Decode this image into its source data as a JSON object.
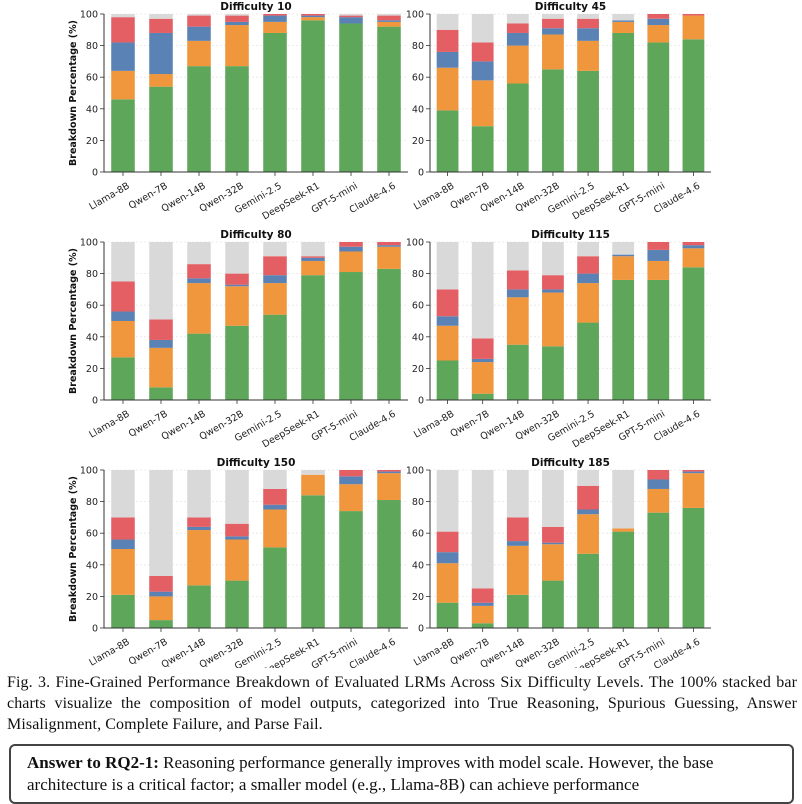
{
  "chart_data": [
    {
      "type": "bar",
      "stacked": true,
      "title": "Difficulty 10",
      "ylabel": "Breakdown Percentage (%)",
      "ylim": [
        0,
        100
      ],
      "yticks": [
        0,
        20,
        40,
        60,
        80,
        100
      ],
      "categories": [
        "Llama-8B",
        "Qwen-7B",
        "Qwen-14B",
        "Qwen-32B",
        "Gemini-2.5",
        "DeepSeek-R1",
        "GPT-5-mini",
        "Claude-4.6"
      ],
      "series": [
        {
          "values": [
            46,
            54,
            67,
            67,
            88,
            96,
            94,
            92
          ]
        },
        {
          "values": [
            18,
            8,
            16,
            26,
            7,
            2,
            0,
            3
          ]
        },
        {
          "values": [
            18,
            26,
            9,
            2,
            4,
            1,
            4,
            1
          ]
        },
        {
          "values": [
            16,
            9,
            7,
            4,
            1,
            1,
            1,
            3
          ]
        },
        {
          "values": [
            2,
            3,
            1,
            1,
            0,
            0,
            1,
            1
          ]
        }
      ]
    },
    {
      "type": "bar",
      "stacked": true,
      "title": "Difficulty 45",
      "ylabel": "",
      "ylim": [
        0,
        100
      ],
      "yticks": [
        0,
        20,
        40,
        60,
        80,
        100
      ],
      "categories": [
        "Llama-8B",
        "Qwen-7B",
        "Qwen-14B",
        "Qwen-32B",
        "Gemini-2.5",
        "DeepSeek-R1",
        "GPT-5-mini",
        "Claude-4.6"
      ],
      "series": [
        {
          "values": [
            39,
            29,
            56,
            65,
            64,
            88,
            82,
            84
          ]
        },
        {
          "values": [
            27,
            29,
            24,
            22,
            19,
            7,
            11,
            15
          ]
        },
        {
          "values": [
            10,
            12,
            8,
            4,
            8,
            1,
            4,
            0
          ]
        },
        {
          "values": [
            14,
            12,
            6,
            6,
            6,
            0,
            3,
            1
          ]
        },
        {
          "values": [
            10,
            18,
            6,
            3,
            3,
            4,
            0,
            0
          ]
        }
      ]
    },
    {
      "type": "bar",
      "stacked": true,
      "title": "Difficulty 80",
      "ylabel": "Breakdown Percentage (%)",
      "ylim": [
        0,
        100
      ],
      "yticks": [
        0,
        20,
        40,
        60,
        80,
        100
      ],
      "categories": [
        "Llama-8B",
        "Qwen-7B",
        "Qwen-14B",
        "Qwen-32B",
        "Gemini-2.5",
        "DeepSeek-R1",
        "GPT-5-mini",
        "Claude-4.6"
      ],
      "series": [
        {
          "values": [
            27,
            8,
            42,
            47,
            54,
            79,
            81,
            83
          ]
        },
        {
          "values": [
            23,
            25,
            32,
            25,
            20,
            9,
            13,
            14
          ]
        },
        {
          "values": [
            6,
            5,
            3,
            1,
            5,
            2,
            3,
            1
          ]
        },
        {
          "values": [
            19,
            13,
            9,
            7,
            12,
            1,
            3,
            2
          ]
        },
        {
          "values": [
            25,
            49,
            14,
            20,
            9,
            9,
            0,
            0
          ]
        }
      ]
    },
    {
      "type": "bar",
      "stacked": true,
      "title": "Difficulty 115",
      "ylabel": "",
      "ylim": [
        0,
        100
      ],
      "yticks": [
        0,
        20,
        40,
        60,
        80,
        100
      ],
      "categories": [
        "Llama-8B",
        "Qwen-7B",
        "Qwen-14B",
        "Qwen-32B",
        "Gemini-2.5",
        "DeepSeek-R1",
        "GPT-5-mini",
        "Claude-4.6"
      ],
      "series": [
        {
          "values": [
            25,
            4,
            35,
            34,
            49,
            76,
            76,
            84
          ]
        },
        {
          "values": [
            22,
            20,
            30,
            34,
            25,
            15,
            12,
            12
          ]
        },
        {
          "values": [
            6,
            2,
            5,
            2,
            6,
            1,
            7,
            2
          ]
        },
        {
          "values": [
            17,
            13,
            12,
            9,
            11,
            0,
            5,
            2
          ]
        },
        {
          "values": [
            30,
            61,
            18,
            21,
            9,
            8,
            0,
            0
          ]
        }
      ]
    },
    {
      "type": "bar",
      "stacked": true,
      "title": "Difficulty 150",
      "ylabel": "Breakdown Percentage (%)",
      "ylim": [
        0,
        100
      ],
      "yticks": [
        0,
        20,
        40,
        60,
        80,
        100
      ],
      "categories": [
        "Llama-8B",
        "Qwen-7B",
        "Qwen-14B",
        "Qwen-32B",
        "Gemini-2.5",
        "DeepSeek-R1",
        "GPT-5-mini",
        "Claude-4.6"
      ],
      "series": [
        {
          "values": [
            21,
            5,
            27,
            30,
            51,
            84,
            74,
            81
          ]
        },
        {
          "values": [
            29,
            15,
            35,
            26,
            24,
            13,
            17,
            17
          ]
        },
        {
          "values": [
            6,
            3,
            2,
            2,
            3,
            0,
            5,
            1
          ]
        },
        {
          "values": [
            14,
            10,
            6,
            8,
            10,
            0,
            4,
            1
          ]
        },
        {
          "values": [
            30,
            67,
            30,
            34,
            12,
            3,
            0,
            0
          ]
        }
      ]
    },
    {
      "type": "bar",
      "stacked": true,
      "title": "Difficulty 185",
      "ylabel": "",
      "ylim": [
        0,
        100
      ],
      "yticks": [
        0,
        20,
        40,
        60,
        80,
        100
      ],
      "categories": [
        "Llama-8B",
        "Qwen-7B",
        "Qwen-14B",
        "Qwen-32B",
        "Gemini-2.5",
        "DeepSeek-R1",
        "GPT-5-mini",
        "Claude-4.6"
      ],
      "series": [
        {
          "values": [
            16,
            3,
            21,
            30,
            47,
            61,
            73,
            76
          ]
        },
        {
          "values": [
            25,
            11,
            31,
            23,
            25,
            2,
            15,
            22
          ]
        },
        {
          "values": [
            7,
            2,
            3,
            1,
            3,
            0,
            6,
            1
          ]
        },
        {
          "values": [
            13,
            9,
            15,
            10,
            15,
            0,
            6,
            1
          ]
        },
        {
          "values": [
            39,
            75,
            30,
            36,
            10,
            37,
            0,
            0
          ]
        }
      ]
    }
  ],
  "series_colors": [
    "#5ea65a",
    "#f0963c",
    "#5a82b4",
    "#e35f64",
    "#d9d9d9"
  ],
  "caption": "Fig. 3.  Fine-Grained Performance Breakdown of Evaluated LRMs Across Six Difficulty Levels. The 100% stacked bar charts visualize the composition of model outputs, categorized into True Reasoning, Spurious Guessing, Answer Misalignment, Complete Failure, and Parse Fail.",
  "answer": {
    "label": "Answer to RQ2-1:",
    "text": " Reasoning performance generally improves with model scale. However, the base architecture is a critical factor; a smaller model (e.g., Llama-8B) can achieve performance"
  }
}
